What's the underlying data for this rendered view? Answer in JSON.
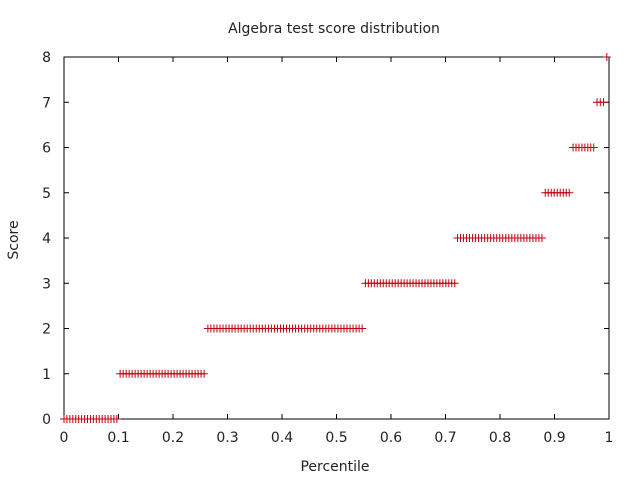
{
  "chart_data": {
    "type": "scatter",
    "title": "Algebra test score distribution",
    "xlabel": "Percentile",
    "ylabel": "Score",
    "xlim": [
      0,
      1
    ],
    "ylim": [
      0,
      8
    ],
    "x_ticks": [
      "0",
      "0.1",
      "0.2",
      "0.3",
      "0.4",
      "0.5",
      "0.6",
      "0.7",
      "0.8",
      "0.9",
      "1"
    ],
    "y_ticks": [
      "0",
      "1",
      "2",
      "3",
      "4",
      "5",
      "6",
      "7",
      "8"
    ],
    "grid": false,
    "marker": "plus",
    "marker_color": "#c0000f",
    "series": [
      {
        "points_by_score": [
          {
            "score": 0,
            "x_start": 0.0,
            "x_end": 0.097,
            "step": 0.0055
          },
          {
            "score": 1,
            "x_start": 0.103,
            "x_end": 0.257,
            "step": 0.0055
          },
          {
            "score": 2,
            "x_start": 0.264,
            "x_end": 0.547,
            "step": 0.0055
          },
          {
            "score": 3,
            "x_start": 0.553,
            "x_end": 0.717,
            "step": 0.0055
          },
          {
            "score": 4,
            "x_start": 0.722,
            "x_end": 0.877,
            "step": 0.0055
          },
          {
            "score": 5,
            "x_start": 0.883,
            "x_end": 0.927,
            "step": 0.0055
          },
          {
            "score": 6,
            "x_start": 0.934,
            "x_end": 0.972,
            "step": 0.0055
          },
          {
            "score": 7,
            "x_start": 0.978,
            "x_end": 0.99,
            "step": 0.0055
          },
          {
            "score": 8,
            "x_start": 0.996,
            "x_end": 0.996,
            "step": 0.0055
          }
        ]
      }
    ]
  }
}
